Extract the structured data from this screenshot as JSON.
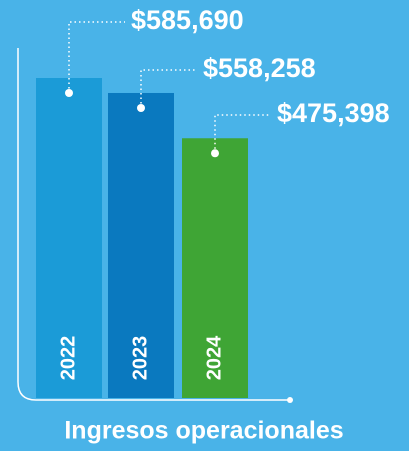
{
  "chart_data": {
    "type": "bar",
    "title": "Ingresos operacionales",
    "categories": [
      "2022",
      "2023",
      "2024"
    ],
    "values": [
      585690,
      558258,
      475398
    ],
    "value_labels": [
      "$585,690",
      "$558,258",
      "$475,398"
    ],
    "colors": [
      "#1b9bd7",
      "#0a79bf",
      "#3fa535"
    ]
  }
}
